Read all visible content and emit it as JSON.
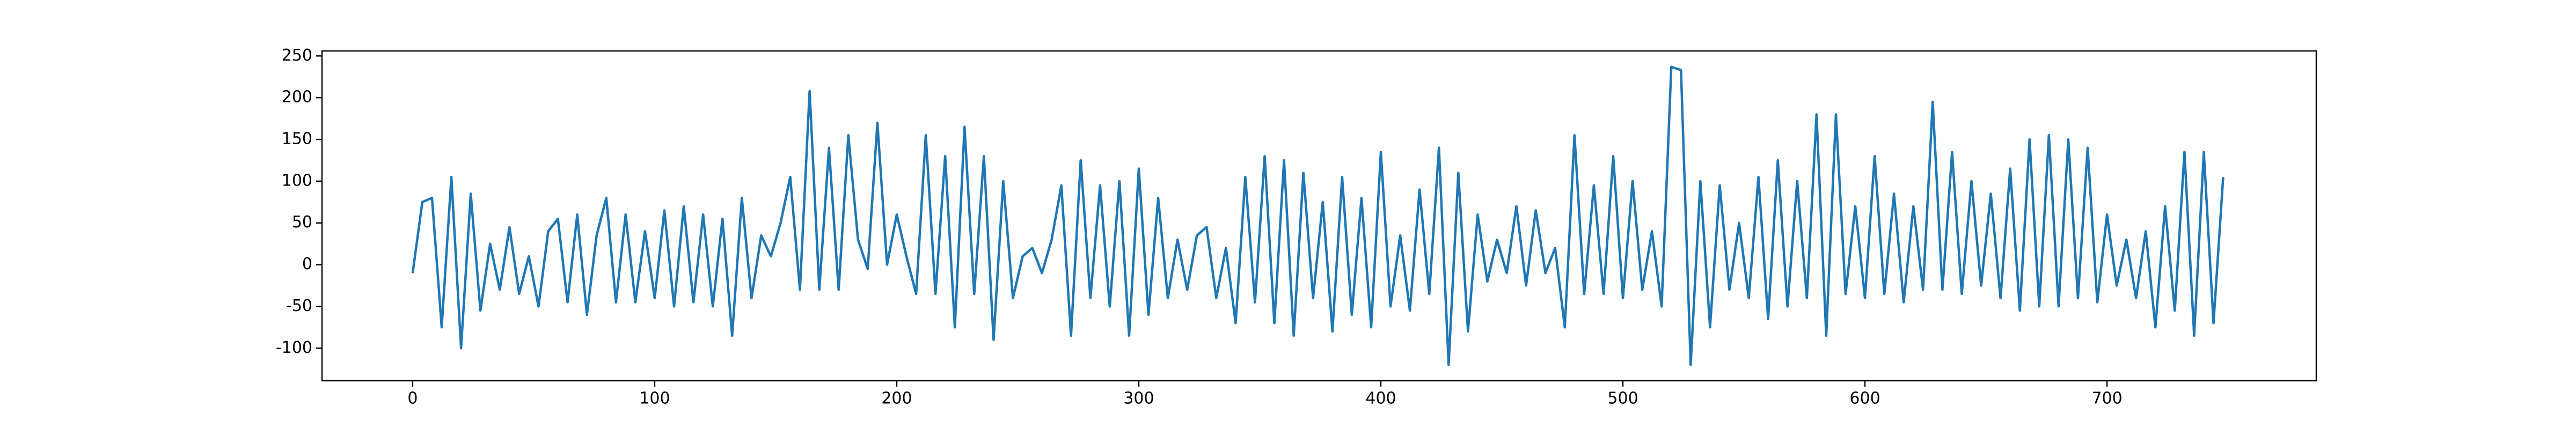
{
  "chart_data": {
    "type": "line",
    "color": "#1f77b4",
    "x": [
      0,
      4,
      8,
      12,
      16,
      20,
      24,
      28,
      32,
      36,
      40,
      44,
      48,
      52,
      56,
      60,
      64,
      68,
      72,
      76,
      80,
      84,
      88,
      92,
      96,
      100,
      104,
      108,
      112,
      116,
      120,
      124,
      128,
      132,
      136,
      140,
      144,
      148,
      152,
      156,
      160,
      164,
      168,
      172,
      176,
      180,
      184,
      188,
      192,
      196,
      200,
      204,
      208,
      212,
      216,
      220,
      224,
      228,
      232,
      236,
      240,
      244,
      248,
      252,
      256,
      260,
      264,
      268,
      272,
      276,
      280,
      284,
      288,
      292,
      296,
      300,
      304,
      308,
      312,
      316,
      320,
      324,
      328,
      332,
      336,
      340,
      344,
      348,
      352,
      356,
      360,
      364,
      368,
      372,
      376,
      380,
      384,
      388,
      392,
      396,
      400,
      404,
      408,
      412,
      416,
      420,
      424,
      428,
      432,
      436,
      440,
      444,
      448,
      452,
      456,
      460,
      464,
      468,
      472,
      476,
      480,
      484,
      488,
      492,
      496,
      500,
      504,
      508,
      512,
      516,
      520,
      524,
      528,
      532,
      536,
      540,
      544,
      548,
      552,
      556,
      560,
      564,
      568,
      572,
      576,
      580,
      584,
      588,
      592,
      596,
      600,
      604,
      608,
      612,
      616,
      620,
      624,
      628,
      632,
      636,
      640,
      644,
      648,
      652,
      656,
      660,
      664,
      668,
      672,
      676,
      680,
      684,
      688,
      692,
      696,
      700,
      704,
      708,
      712,
      716,
      720,
      724,
      728,
      732,
      736,
      740,
      744,
      748
    ],
    "values": [
      -10,
      75,
      80,
      -75,
      105,
      -100,
      85,
      -55,
      25,
      -30,
      45,
      -35,
      10,
      -50,
      40,
      55,
      -45,
      60,
      -60,
      35,
      80,
      -45,
      60,
      -45,
      40,
      -40,
      65,
      -50,
      70,
      -45,
      60,
      -50,
      55,
      -85,
      80,
      -40,
      35,
      10,
      50,
      105,
      -30,
      208,
      -30,
      140,
      -30,
      155,
      30,
      -5,
      170,
      0,
      60,
      10,
      -35,
      155,
      -35,
      130,
      -75,
      165,
      -35,
      130,
      -90,
      100,
      -40,
      10,
      20,
      -10,
      30,
      95,
      -85,
      125,
      -40,
      95,
      -50,
      100,
      -85,
      115,
      -60,
      80,
      -40,
      30,
      -30,
      35,
      45,
      -40,
      20,
      -70,
      105,
      -45,
      130,
      -70,
      125,
      -85,
      110,
      -40,
      75,
      -80,
      105,
      -60,
      80,
      -75,
      135,
      -50,
      35,
      -55,
      90,
      -35,
      140,
      -120,
      110,
      -80,
      60,
      -20,
      30,
      -10,
      70,
      -25,
      65,
      -10,
      20,
      -75,
      155,
      -35,
      95,
      -35,
      130,
      -40,
      100,
      -30,
      40,
      -50,
      237,
      233,
      -120,
      100,
      -75,
      95,
      -30,
      50,
      -40,
      105,
      -65,
      125,
      -50,
      100,
      -40,
      180,
      -85,
      180,
      -35,
      70,
      -40,
      130,
      -35,
      85,
      -45,
      70,
      -30,
      195,
      -30,
      135,
      -35,
      100,
      -25,
      85,
      -40,
      115,
      -55,
      150,
      -50,
      155,
      -50,
      150,
      -40,
      140,
      -45,
      60,
      -25,
      30,
      -40,
      40,
      -75,
      70,
      -55,
      135,
      -85,
      135,
      -70,
      105
    ],
    "xlim": [
      -37.45,
      786.45
    ],
    "ylim": [
      -139,
      256
    ],
    "xticks": [
      0,
      100,
      200,
      300,
      400,
      500,
      600,
      700
    ],
    "yticks": [
      -100,
      -50,
      0,
      50,
      100,
      150,
      200,
      250
    ]
  }
}
